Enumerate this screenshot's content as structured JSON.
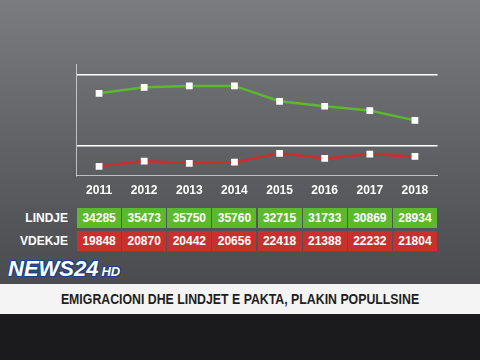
{
  "chart_data": {
    "type": "line",
    "categories": [
      "2011",
      "2012",
      "2013",
      "2014",
      "2015",
      "2016",
      "2017",
      "2018"
    ],
    "series": [
      {
        "name": "LINDJE",
        "color": "#5cb82e",
        "marker": "square",
        "values": [
          34285,
          35473,
          35750,
          35760,
          32715,
          31733,
          30869,
          28934
        ]
      },
      {
        "name": "VDEKJE",
        "color": "#c8302e",
        "marker": "square",
        "values": [
          19848,
          20870,
          20442,
          20656,
          22418,
          21388,
          22232,
          21804
        ]
      }
    ],
    "ylim": [
      18000,
      40000
    ],
    "yticks": [
      24000,
      38000
    ],
    "grid": true,
    "tick_labels": "x"
  },
  "logo": "NEWS24",
  "logo_hd": "HD",
  "headline": "EMIGRACIONI DHE LINDJET E PAKTA, PLAKIN POPULLSINE"
}
